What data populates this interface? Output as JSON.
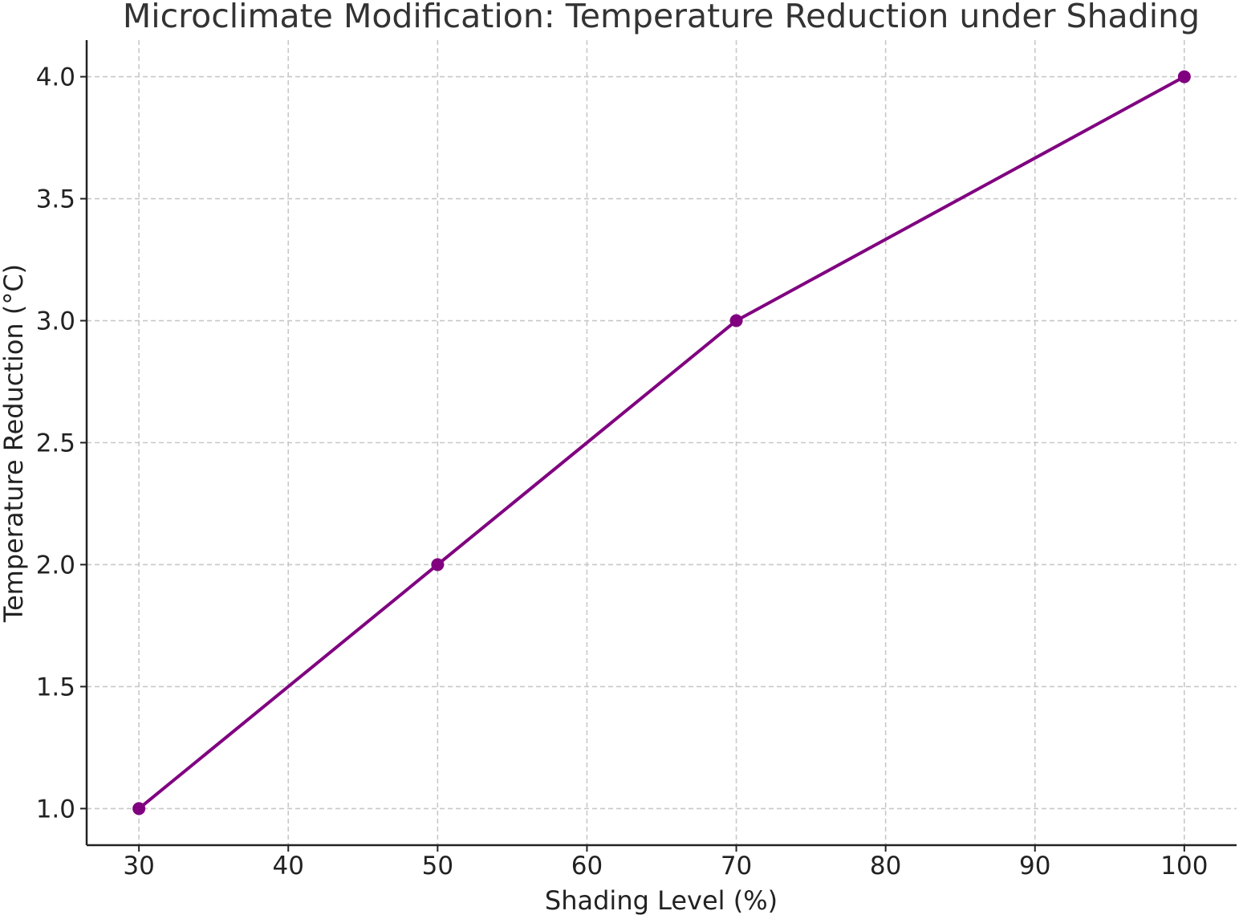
{
  "chart_data": {
    "type": "line",
    "title": "Microclimate Modification: Temperature Reduction under Shading",
    "xlabel": "Shading Level (%)",
    "ylabel": "Temperature Reduction (°C)",
    "x": [
      30,
      50,
      70,
      100
    ],
    "series": [
      {
        "values": [
          1.0,
          2.0,
          3.0,
          4.0
        ],
        "color": "#800080",
        "marker": "circle"
      }
    ],
    "xlim": [
      26.5,
      103.5
    ],
    "ylim": [
      0.85,
      4.15
    ],
    "xticks": [
      "30",
      "40",
      "50",
      "60",
      "70",
      "80",
      "90",
      "100"
    ],
    "yticks": [
      "1.0",
      "1.5",
      "2.0",
      "2.5",
      "3.0",
      "3.5",
      "4.0"
    ],
    "grid": true,
    "grid_style": "dashed",
    "legend": "none"
  }
}
